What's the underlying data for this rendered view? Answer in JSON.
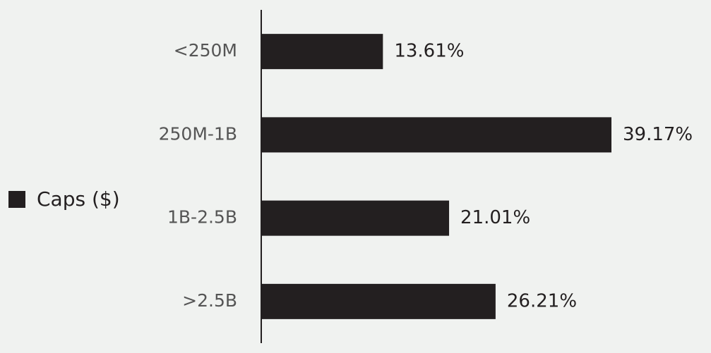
{
  "chart_data": {
    "type": "bar",
    "orientation": "horizontal",
    "categories": [
      "<250M",
      "250M-1B",
      "1B-2.5B",
      ">2.5B"
    ],
    "series": [
      {
        "name": "Caps ($)",
        "color": "#231f20",
        "values": [
          13.61,
          39.17,
          21.01,
          26.21
        ],
        "value_labels": [
          "13.61%",
          "39.17%",
          "21.01%",
          "26.21%"
        ]
      }
    ],
    "legend": "left"
  }
}
